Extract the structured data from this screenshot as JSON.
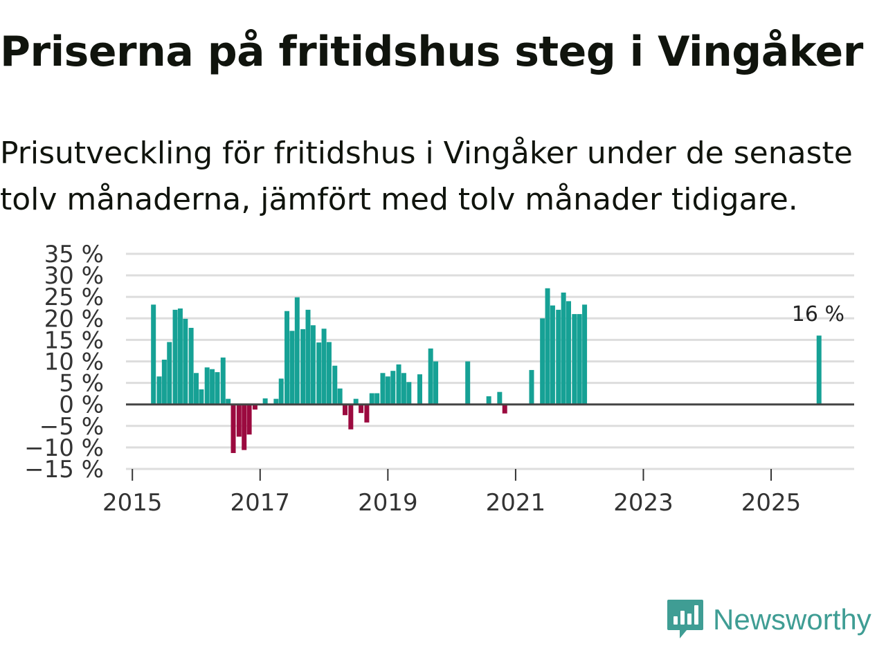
{
  "header": {
    "title": "Priserna på fritidshus steg i Vingåker",
    "subtitle": "Prisutveckling för fritidshus i Vingåker under de senaste tolv månaderna, jämfört med tolv månader tidigare."
  },
  "brand": {
    "name": "Newsworthy",
    "icon": "newsworthy-logo-icon",
    "color": "#3f9d94"
  },
  "chart_data": {
    "type": "bar",
    "title": "Priserna på fritidshus steg i Vingåker",
    "xlabel": "",
    "ylabel": "",
    "ylim": [
      -15,
      35
    ],
    "xlim": [
      2014.9,
      2026.3
    ],
    "y_ticks": [
      35,
      30,
      25,
      20,
      15,
      10,
      5,
      0,
      -5,
      -10,
      -15
    ],
    "y_tick_labels": [
      "35 %",
      "30 %",
      "25 %",
      "20 %",
      "15 %",
      "10 %",
      "5 %",
      "0 %",
      "−5 %",
      "−10 %",
      "−15 %"
    ],
    "x_ticks": [
      2015,
      2017,
      2019,
      2021,
      2023,
      2025
    ],
    "x_tick_labels": [
      "2015",
      "2017",
      "2019",
      "2021",
      "2023",
      "2025"
    ],
    "grid": true,
    "colors": {
      "positive": "#16a195",
      "negative": "#9b0a3f",
      "grid": "#dddddd",
      "zero_line": "#444444"
    },
    "series": [
      {
        "name": "Prisutveckling",
        "x": [
          2015.33,
          2015.42,
          2015.5,
          2015.58,
          2015.67,
          2015.75,
          2015.83,
          2015.92,
          2016.0,
          2016.08,
          2016.17,
          2016.25,
          2016.33,
          2016.42,
          2016.5,
          2016.58,
          2016.67,
          2016.75,
          2016.83,
          2016.92,
          2017.08,
          2017.25,
          2017.33,
          2017.42,
          2017.5,
          2017.58,
          2017.67,
          2017.75,
          2017.83,
          2017.92,
          2018.0,
          2018.08,
          2018.17,
          2018.25,
          2018.33,
          2018.42,
          2018.5,
          2018.58,
          2018.67,
          2018.75,
          2018.83,
          2018.92,
          2019.0,
          2019.08,
          2019.17,
          2019.25,
          2019.33,
          2019.5,
          2019.67,
          2019.75,
          2020.25,
          2020.58,
          2020.75,
          2020.83,
          2021.25,
          2021.42,
          2021.5,
          2021.58,
          2021.67,
          2021.75,
          2021.83,
          2021.92,
          2022.0,
          2022.08,
          2025.75
        ],
        "values": [
          23.2,
          6.5,
          10.4,
          14.5,
          22.0,
          22.3,
          19.9,
          17.8,
          7.3,
          3.5,
          8.6,
          8.2,
          7.5,
          10.9,
          1.3,
          -11.3,
          -7.5,
          -10.6,
          -7.0,
          -1.2,
          1.4,
          1.3,
          6.0,
          21.7,
          17.1,
          24.9,
          17.5,
          22.0,
          18.4,
          14.4,
          17.6,
          14.5,
          9.0,
          3.7,
          -2.5,
          -5.8,
          1.3,
          -2.0,
          -4.2,
          2.6,
          2.6,
          7.3,
          6.5,
          7.8,
          9.3,
          7.3,
          5.2,
          7.0,
          13.0,
          10.0,
          10.0,
          1.9,
          2.9,
          -2.1,
          8.0,
          20.0,
          27.0,
          23.0,
          22.0,
          26.0,
          24.0,
          21.0,
          21.0,
          23.2,
          16.0
        ]
      }
    ],
    "annotations": [
      {
        "x": 2025.75,
        "y": 16.0,
        "text": "16 %"
      }
    ]
  }
}
